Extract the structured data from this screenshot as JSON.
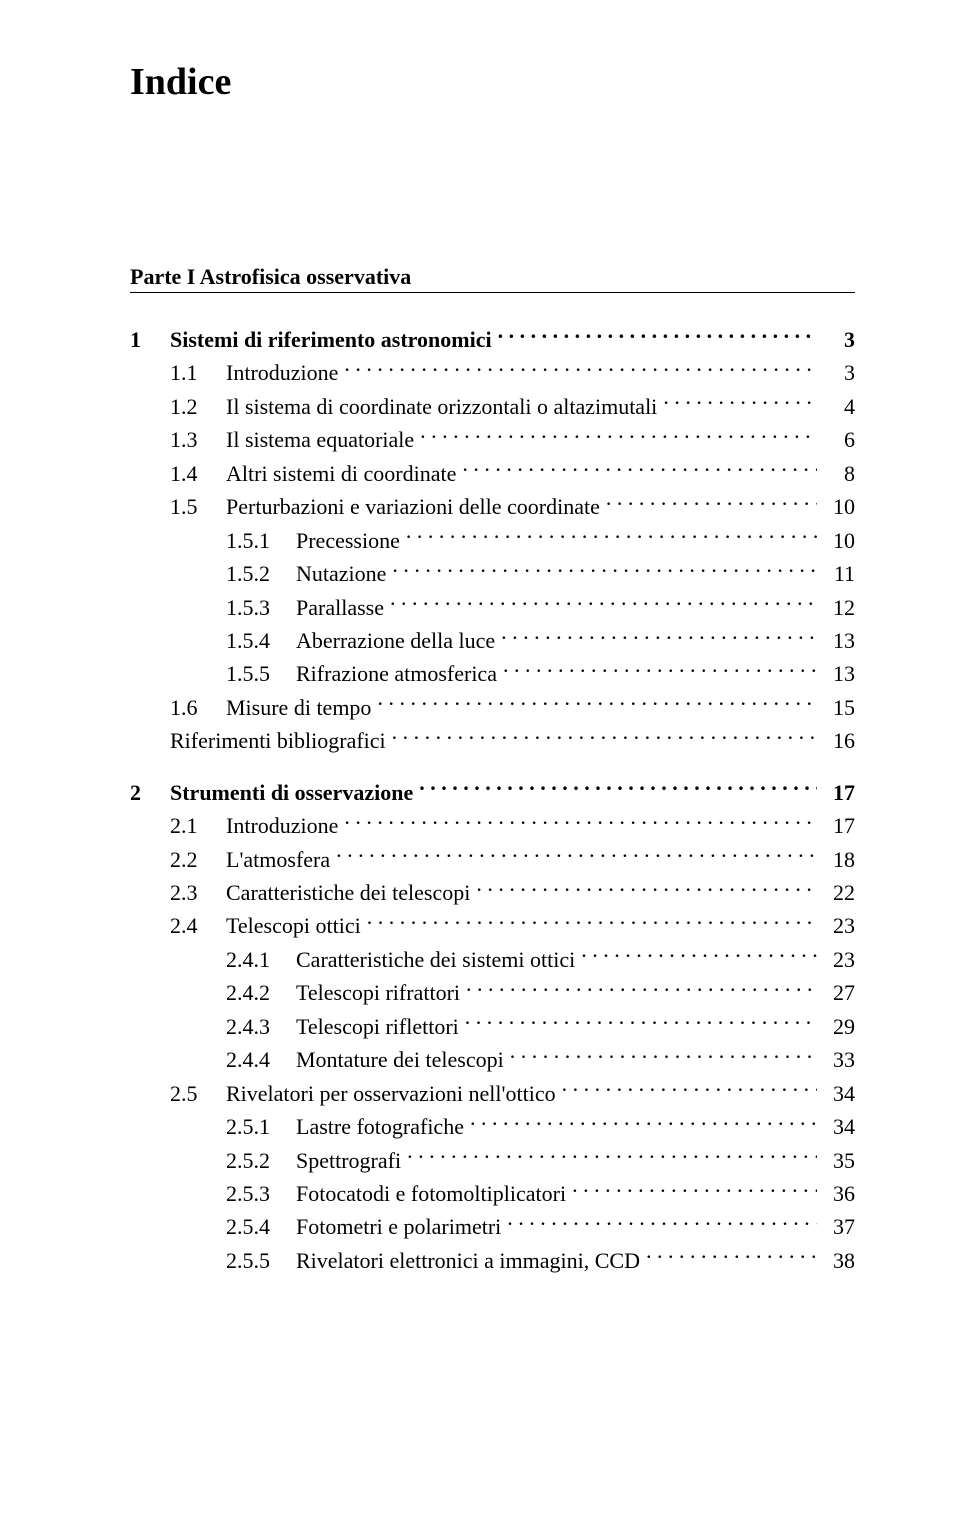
{
  "title": "Indice",
  "part": "Parte I  Astrofisica osservativa",
  "entries": [
    {
      "level": 0,
      "num": "1",
      "label": "Sistemi di riferimento astronomici",
      "page": "3",
      "bold": true
    },
    {
      "level": 1,
      "num": "1.1",
      "label": "Introduzione",
      "page": "3"
    },
    {
      "level": 1,
      "num": "1.2",
      "label": "Il sistema di coordinate orizzontali o altazimutali",
      "page": "4"
    },
    {
      "level": 1,
      "num": "1.3",
      "label": "Il sistema equatoriale",
      "page": "6"
    },
    {
      "level": 1,
      "num": "1.4",
      "label": "Altri sistemi di coordinate",
      "page": "8"
    },
    {
      "level": 1,
      "num": "1.5",
      "label": "Perturbazioni e variazioni delle coordinate",
      "page": "10"
    },
    {
      "level": 2,
      "num": "1.5.1",
      "label": "Precessione",
      "page": "10"
    },
    {
      "level": 2,
      "num": "1.5.2",
      "label": "Nutazione",
      "page": "11"
    },
    {
      "level": 2,
      "num": "1.5.3",
      "label": "Parallasse",
      "page": "12"
    },
    {
      "level": 2,
      "num": "1.5.4",
      "label": "Aberrazione della luce",
      "page": "13"
    },
    {
      "level": 2,
      "num": "1.5.5",
      "label": "Rifrazione atmosferica",
      "page": "13"
    },
    {
      "level": 1,
      "num": "1.6",
      "label": "Misure di tempo",
      "page": "15"
    },
    {
      "level": -1,
      "num": "",
      "label": "Riferimenti bibliografici",
      "page": "16"
    },
    {
      "level": 0,
      "num": "2",
      "label": "Strumenti di osservazione",
      "page": "17",
      "bold": true,
      "gap": true
    },
    {
      "level": 1,
      "num": "2.1",
      "label": "Introduzione",
      "page": "17"
    },
    {
      "level": 1,
      "num": "2.2",
      "label": "L'atmosfera",
      "page": "18"
    },
    {
      "level": 1,
      "num": "2.3",
      "label": "Caratteristiche dei telescopi",
      "page": "22"
    },
    {
      "level": 1,
      "num": "2.4",
      "label": "Telescopi ottici",
      "page": "23"
    },
    {
      "level": 2,
      "num": "2.4.1",
      "label": "Caratteristiche dei sistemi ottici",
      "page": "23"
    },
    {
      "level": 2,
      "num": "2.4.2",
      "label": "Telescopi rifrattori",
      "page": "27"
    },
    {
      "level": 2,
      "num": "2.4.3",
      "label": "Telescopi riflettori",
      "page": "29"
    },
    {
      "level": 2,
      "num": "2.4.4",
      "label": "Montature dei telescopi",
      "page": "33"
    },
    {
      "level": 1,
      "num": "2.5",
      "label": "Rivelatori per osservazioni nell'ottico",
      "page": "34"
    },
    {
      "level": 2,
      "num": "2.5.1",
      "label": "Lastre fotografiche",
      "page": "34"
    },
    {
      "level": 2,
      "num": "2.5.2",
      "label": "Spettrografi",
      "page": "35"
    },
    {
      "level": 2,
      "num": "2.5.3",
      "label": "Fotocatodi e fotomoltiplicatori",
      "page": "36"
    },
    {
      "level": 2,
      "num": "2.5.4",
      "label": "Fotometri e polarimetri",
      "page": "37"
    },
    {
      "level": 2,
      "num": "2.5.5",
      "label": "Rivelatori elettronici a immagini, CCD",
      "page": "38"
    }
  ]
}
